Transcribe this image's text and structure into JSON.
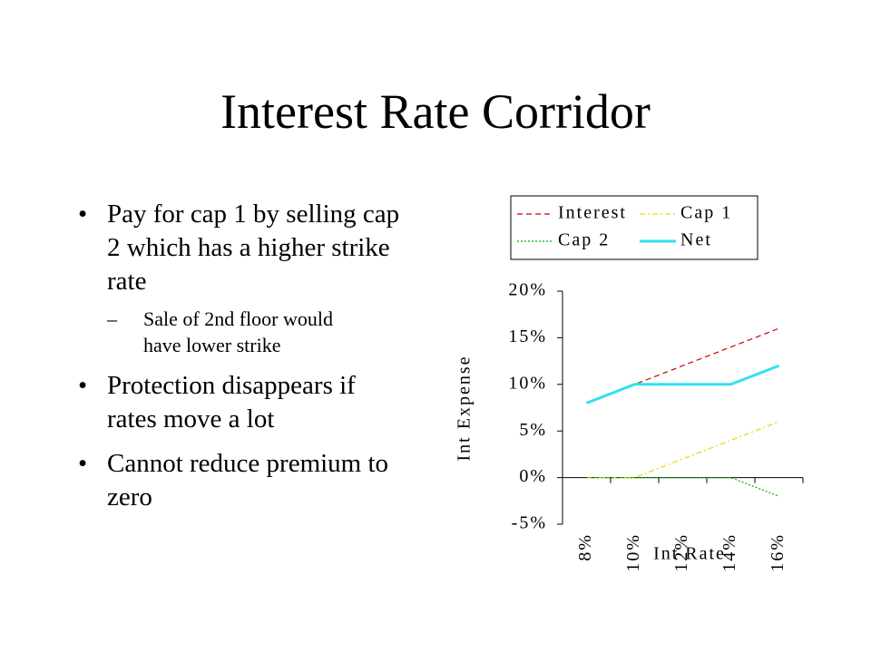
{
  "title": "Interest Rate Corridor",
  "bullets": [
    {
      "text": "Pay for cap 1 by selling cap 2 which has a higher strike rate",
      "sub": [
        "Sale of 2nd floor would have lower strike"
      ]
    },
    {
      "text": "Protection disappears if rates move a lot"
    },
    {
      "text": "Cannot reduce premium to zero"
    }
  ],
  "chart_data": {
    "type": "line",
    "x_label": "Int Rate",
    "y_label": "Int Expense",
    "categories": [
      "8%",
      "10%",
      "12%",
      "14%",
      "16%"
    ],
    "series": [
      {
        "name": "Interest",
        "color": "#cc0000",
        "dash": "6,4",
        "width": 1.2,
        "values": [
          8,
          10,
          12,
          14,
          16
        ]
      },
      {
        "name": "Cap 1",
        "color": "#e8d800",
        "dash": "6,3,2,3",
        "width": 1.2,
        "values": [
          0,
          0,
          2,
          4,
          6
        ]
      },
      {
        "name": "Cap 2",
        "color": "#00b000",
        "dash": "2,2",
        "width": 1.2,
        "values": [
          0,
          0,
          0,
          0,
          -2
        ]
      },
      {
        "name": "Net",
        "color": "#33e0f0",
        "dash": "none",
        "width": 3,
        "values": [
          8,
          10,
          10,
          10,
          12
        ]
      }
    ],
    "ylim": [
      -5,
      20
    ],
    "yticks": [
      {
        "value": -5,
        "label": "-5%"
      },
      {
        "value": 0,
        "label": "0%"
      },
      {
        "value": 5,
        "label": "5%"
      },
      {
        "value": 10,
        "label": "10%"
      },
      {
        "value": 15,
        "label": "15%"
      },
      {
        "value": 20,
        "label": "20%"
      }
    ]
  }
}
